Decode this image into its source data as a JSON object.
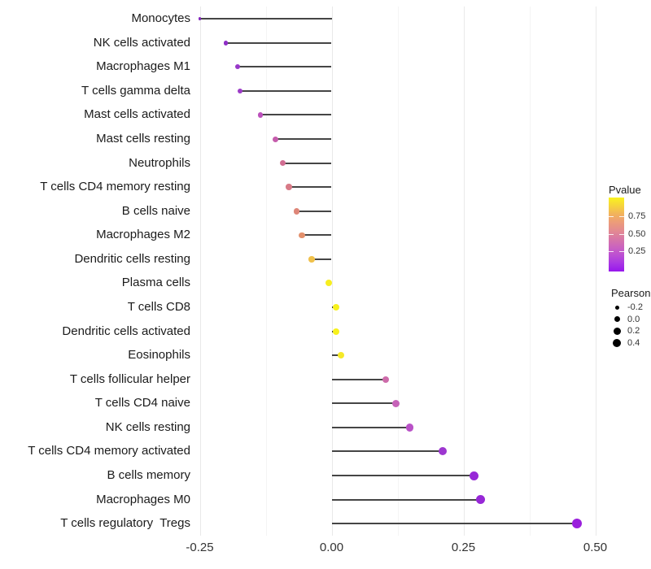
{
  "chart_data": {
    "type": "lollipop",
    "title": "",
    "xlabel": "",
    "ylabel": "",
    "xlim": [
      -0.285,
      0.55
    ],
    "grid": "vertical-only",
    "x_major_ticks": [
      -0.25,
      0.0,
      0.25,
      0.5
    ],
    "x_minor_ticks": [
      -0.125,
      0.125,
      0.375
    ],
    "x_tick_labels": [
      "-0.25",
      "0.00",
      "0.25",
      "0.50"
    ],
    "categories": [
      "Monocytes",
      "NK cells activated",
      "Macrophages M1",
      "T cells gamma delta",
      "Mast cells activated",
      "Mast cells resting",
      "Neutrophils",
      "T cells CD4 memory resting",
      "B cells naive",
      "Macrophages M2",
      "Dendritic cells resting",
      "Plasma cells",
      "T cells CD8",
      "Dendritic cells activated",
      "Eosinophils",
      "T cells follicular helper",
      "T cells CD4 naive",
      "NK cells resting",
      "T cells CD4 memory activated",
      "B cells memory",
      "Macrophages M0",
      "T cells regulatory  Tregs"
    ],
    "series": [
      {
        "name": "Pearson",
        "values": [
          -0.25,
          -0.201,
          -0.178,
          -0.173,
          -0.135,
          -0.107,
          -0.092,
          -0.081,
          -0.066,
          -0.056,
          -0.038,
          -0.005,
          0.009,
          0.009,
          0.018,
          0.103,
          0.122,
          0.148,
          0.21,
          0.27,
          0.282,
          0.465
        ]
      }
    ],
    "point_colors": [
      "#8327BD",
      "#8F2EC6",
      "#9838C9",
      "#9C3CC7",
      "#BC51BC",
      "#C55CAC",
      "#D16E92",
      "#D87A87",
      "#DE8679",
      "#E3906C",
      "#F0C14B",
      "#F7EE20",
      "#F7F11C",
      "#F7F11C",
      "#F5E928",
      "#CD6BAA",
      "#C662B8",
      "#B951C7",
      "#9D36D0",
      "#9728D7",
      "#9728D7",
      "#9A1FDC"
    ],
    "point_diameters": [
      3.5,
      5.5,
      6,
      6,
      6.5,
      7,
      7,
      7.5,
      7.5,
      7.5,
      7.5,
      8,
      8,
      8,
      8.5,
      8.5,
      9,
      9.5,
      10,
      11,
      11,
      12.5
    ],
    "legend_pvalue": {
      "title": "Pvalue",
      "tick_labels": [
        "0.75",
        "0.50",
        "0.25"
      ],
      "gradient_top_to_bottom": [
        "#F9F21E",
        "#F6D43B",
        "#F2B35C",
        "#EC9C79",
        "#E38B90",
        "#D877A6",
        "#CB64BE",
        "#BC50D2",
        "#A936E4",
        "#9716EC"
      ]
    },
    "legend_pearson": {
      "title": "Pearson",
      "entries": [
        {
          "label": "-0.2",
          "diameter": 5
        },
        {
          "label": "0.0",
          "diameter": 7
        },
        {
          "label": "0.2",
          "diameter": 9
        },
        {
          "label": "0.4",
          "diameter": 10.5
        }
      ]
    }
  },
  "colors": {
    "background": "#ffffff",
    "stem": "#454545",
    "grid_major": "#e9e9e9",
    "grid_minor": "#f4f4f4",
    "axis_text": "#333333",
    "category_text": "#1b1b1b",
    "legend_dot": "#000000"
  }
}
